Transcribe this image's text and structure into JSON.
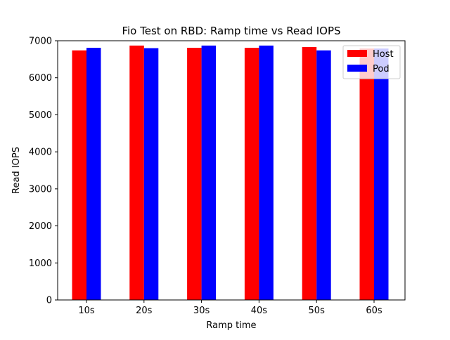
{
  "chart_data": {
    "type": "bar",
    "title": "Fio Test on RBD: Ramp time vs Read IOPS",
    "xlabel": "Ramp time",
    "ylabel": "Read IOPS",
    "categories": [
      "10s",
      "20s",
      "30s",
      "40s",
      "50s",
      "60s"
    ],
    "series": [
      {
        "name": "Host",
        "color": "#ff0000",
        "values": [
          6740,
          6870,
          6810,
          6810,
          6830,
          6790
        ]
      },
      {
        "name": "Pod",
        "color": "#0000ff",
        "values": [
          6810,
          6800,
          6870,
          6870,
          6740,
          6790
        ]
      }
    ],
    "ylim": [
      0,
      7000
    ],
    "yticks": [
      0,
      1000,
      2000,
      3000,
      4000,
      5000,
      6000,
      7000
    ],
    "grid": false,
    "legend_position": "top-right"
  }
}
